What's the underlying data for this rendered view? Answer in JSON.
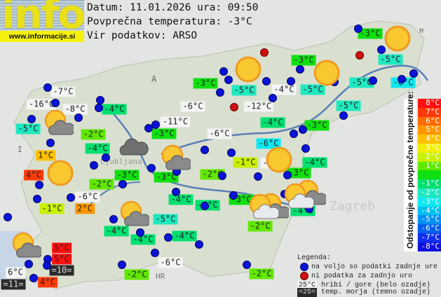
{
  "header": {
    "logo_text": "info",
    "logo_url": "www.informacije.si",
    "date_line": "Datum: 11.01.2026 ura: 09:50",
    "avg_line": "Povprečna temperatura: -3°C",
    "source_line": "Vir podatkov: ARSO"
  },
  "average_temperature": -3,
  "stations": [
    {
      "t": "-3°C"
    },
    {
      "t": "-5°C"
    },
    {
      "t": "-3°C"
    },
    {
      "t": "-3°C"
    },
    {
      "t": "-5°C"
    },
    {
      "t": "-4°C",
      "style": "mountain"
    },
    {
      "t": "-5°C"
    },
    {
      "t": "-5°C"
    },
    {
      "t": "-6°C"
    },
    {
      "t": "-5°C"
    },
    {
      "t": "-12°C",
      "style": "mountain"
    },
    {
      "t": "-7°C",
      "style": "mountain"
    },
    {
      "t": "-16°C",
      "style": "mountain"
    },
    {
      "t": "-8°C",
      "style": "mountain"
    },
    {
      "t": "-4°C"
    },
    {
      "t": "-6°C",
      "style": "mountain"
    },
    {
      "t": "-5°C"
    },
    {
      "t": "-11°C",
      "style": "mountain"
    },
    {
      "t": "-2°C"
    },
    {
      "t": "-3°C"
    },
    {
      "t": "-6°C",
      "style": "mountain"
    },
    {
      "t": "-4°C"
    },
    {
      "t": "-3°C"
    },
    {
      "t": "-4°C"
    },
    {
      "t": "-6°C"
    },
    {
      "t": "1°C"
    },
    {
      "t": "-1°C"
    },
    {
      "t": "-6°C",
      "style": "mountain"
    },
    {
      "t": "-4°C"
    },
    {
      "t": "4°C"
    },
    {
      "t": "-3°C"
    },
    {
      "t": "-3°C"
    },
    {
      "t": "-2°C"
    },
    {
      "t": "-3°C"
    },
    {
      "t": "-6°C",
      "style": "mountain"
    },
    {
      "t": "-2°C"
    },
    {
      "t": "-4°C"
    },
    {
      "t": "-4°C"
    },
    {
      "t": "-3°C"
    },
    {
      "t": "-4°C"
    },
    {
      "t": "-1°C"
    },
    {
      "t": "2°C"
    },
    {
      "t": "-5°C"
    },
    {
      "t": "-2°C"
    },
    {
      "t": "-4°C"
    },
    {
      "t": "-4°C"
    },
    {
      "t": "-4°C"
    },
    {
      "t": "5°C"
    },
    {
      "t": "5°C"
    },
    {
      "t": "=10=",
      "style": "sea"
    },
    {
      "t": "6°C",
      "style": "mountain"
    },
    {
      "t": "=11=",
      "style": "sea"
    },
    {
      "t": "4°C"
    },
    {
      "t": "-6°C",
      "style": "mountain"
    },
    {
      "t": "-2°C"
    },
    {
      "t": "-2°C"
    }
  ],
  "weather_icons": [
    "sun",
    "sun",
    "sun",
    "sun",
    "sun",
    "sun-cloud",
    "cloud",
    "sun-cloud",
    "sun-cloud",
    "sun-cloud",
    "sun-cloud",
    "sun-cloud",
    "sun-cloud-light",
    "sun-cloud-light"
  ],
  "scale": {
    "title": "Odstopanje od povprečne temperature:",
    "items": [
      {
        "label": "8°C",
        "color": "#ff1010"
      },
      {
        "label": "7°C",
        "color": "#ff3a08"
      },
      {
        "label": "6°C",
        "color": "#ff6a00"
      },
      {
        "label": "5°C",
        "color": "#ff9600"
      },
      {
        "label": "4°C",
        "color": "#ffc000"
      },
      {
        "label": "3°C",
        "color": "#f2f000"
      },
      {
        "label": "2°C",
        "color": "#c8f000"
      },
      {
        "label": "1°C",
        "color": "#60e800"
      },
      {
        "label": "",
        "color": "#10e010"
      },
      {
        "label": "-1°C",
        "color": "#00e070"
      },
      {
        "label": "-2°C",
        "color": "#20e8c0"
      },
      {
        "label": "-3°C",
        "color": "#10e8f0"
      },
      {
        "label": "-4°C",
        "color": "#00c0f0"
      },
      {
        "label": "-5°C",
        "color": "#0090f0"
      },
      {
        "label": "-6°C",
        "color": "#0060f0"
      },
      {
        "label": "-7°C",
        "color": "#1030f0"
      },
      {
        "label": "-8°C",
        "color": "#1010e0"
      }
    ]
  },
  "legend": {
    "title": "Legenda:",
    "blue_dot": "na voljo so podatki zadnje ure",
    "red_dot": "ni podatka za zadnjo uro",
    "mountain_sample": "25°C",
    "mountain_text": "hribi / gore (belo ozadje)",
    "sea_sample": "=25=",
    "sea_text": "temp. morja (temno ozadje)"
  },
  "map_labels": {
    "austria": "A",
    "hungary": "H",
    "italy": "I",
    "croatia": "HR",
    "zagreb": "Zagreb",
    "ljubljana": "Ljubljana"
  },
  "colors": {
    "blue_dot": "#0a14d8",
    "red_dot": "#d01010",
    "mountain_bg": "#f4f4f4",
    "sea_bg": "#2a2a2a"
  }
}
